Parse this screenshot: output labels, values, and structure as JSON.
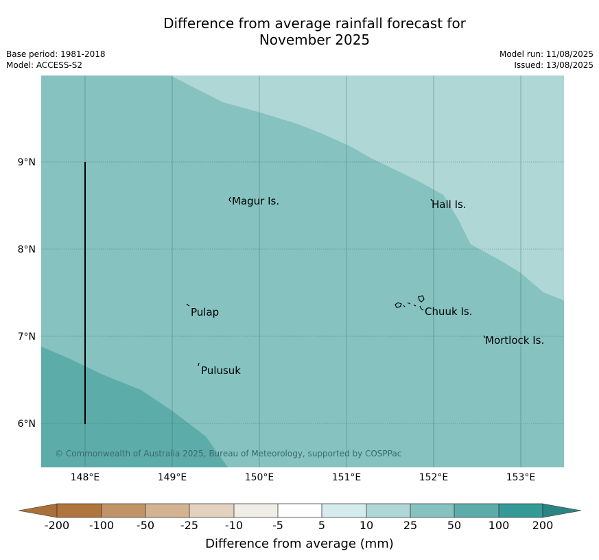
{
  "title_line1": "Difference from average rainfall forecast for",
  "title_line2": "November 2025",
  "meta": {
    "base_period": "Base period: 1981-2018",
    "model": "Model: ACCESS-S2",
    "model_run": "Model run: 11/08/2025",
    "issued": "Issued: 13/08/2025"
  },
  "map": {
    "copyright": "© Commonwealth of Australia 2025, Bureau of Meteorology, supported by COSPPac",
    "lat_labels": [
      "9°N",
      "8°N",
      "7°N",
      "6°N"
    ],
    "lon_labels": [
      "148°E",
      "149°E",
      "150°E",
      "151°E",
      "152°E",
      "153°E"
    ],
    "places": [
      "Magur Is.",
      "Hall Is.",
      "Pulap",
      "Chuuk Is.",
      "Mortlock Is.",
      "Pulusuk"
    ],
    "colors": {
      "class_10_25": "#aed7d6",
      "class_25_50": "#85c2c0",
      "class_50_100": "#5cacaa"
    }
  },
  "colorbar": {
    "title": "Difference from average (mm)",
    "tick_labels": [
      "-200",
      "-100",
      "-50",
      "-25",
      "-10",
      "-5",
      "5",
      "10",
      "25",
      "50",
      "100",
      "200"
    ],
    "colors": [
      "#a9703a",
      "#b0753c",
      "#c19468",
      "#d3b392",
      "#e3d1bf",
      "#f0ede7",
      "#ffffff",
      "#d6ecec",
      "#aed7d6",
      "#85c2c0",
      "#5cacaa",
      "#339a98",
      "#2c8482"
    ]
  }
}
